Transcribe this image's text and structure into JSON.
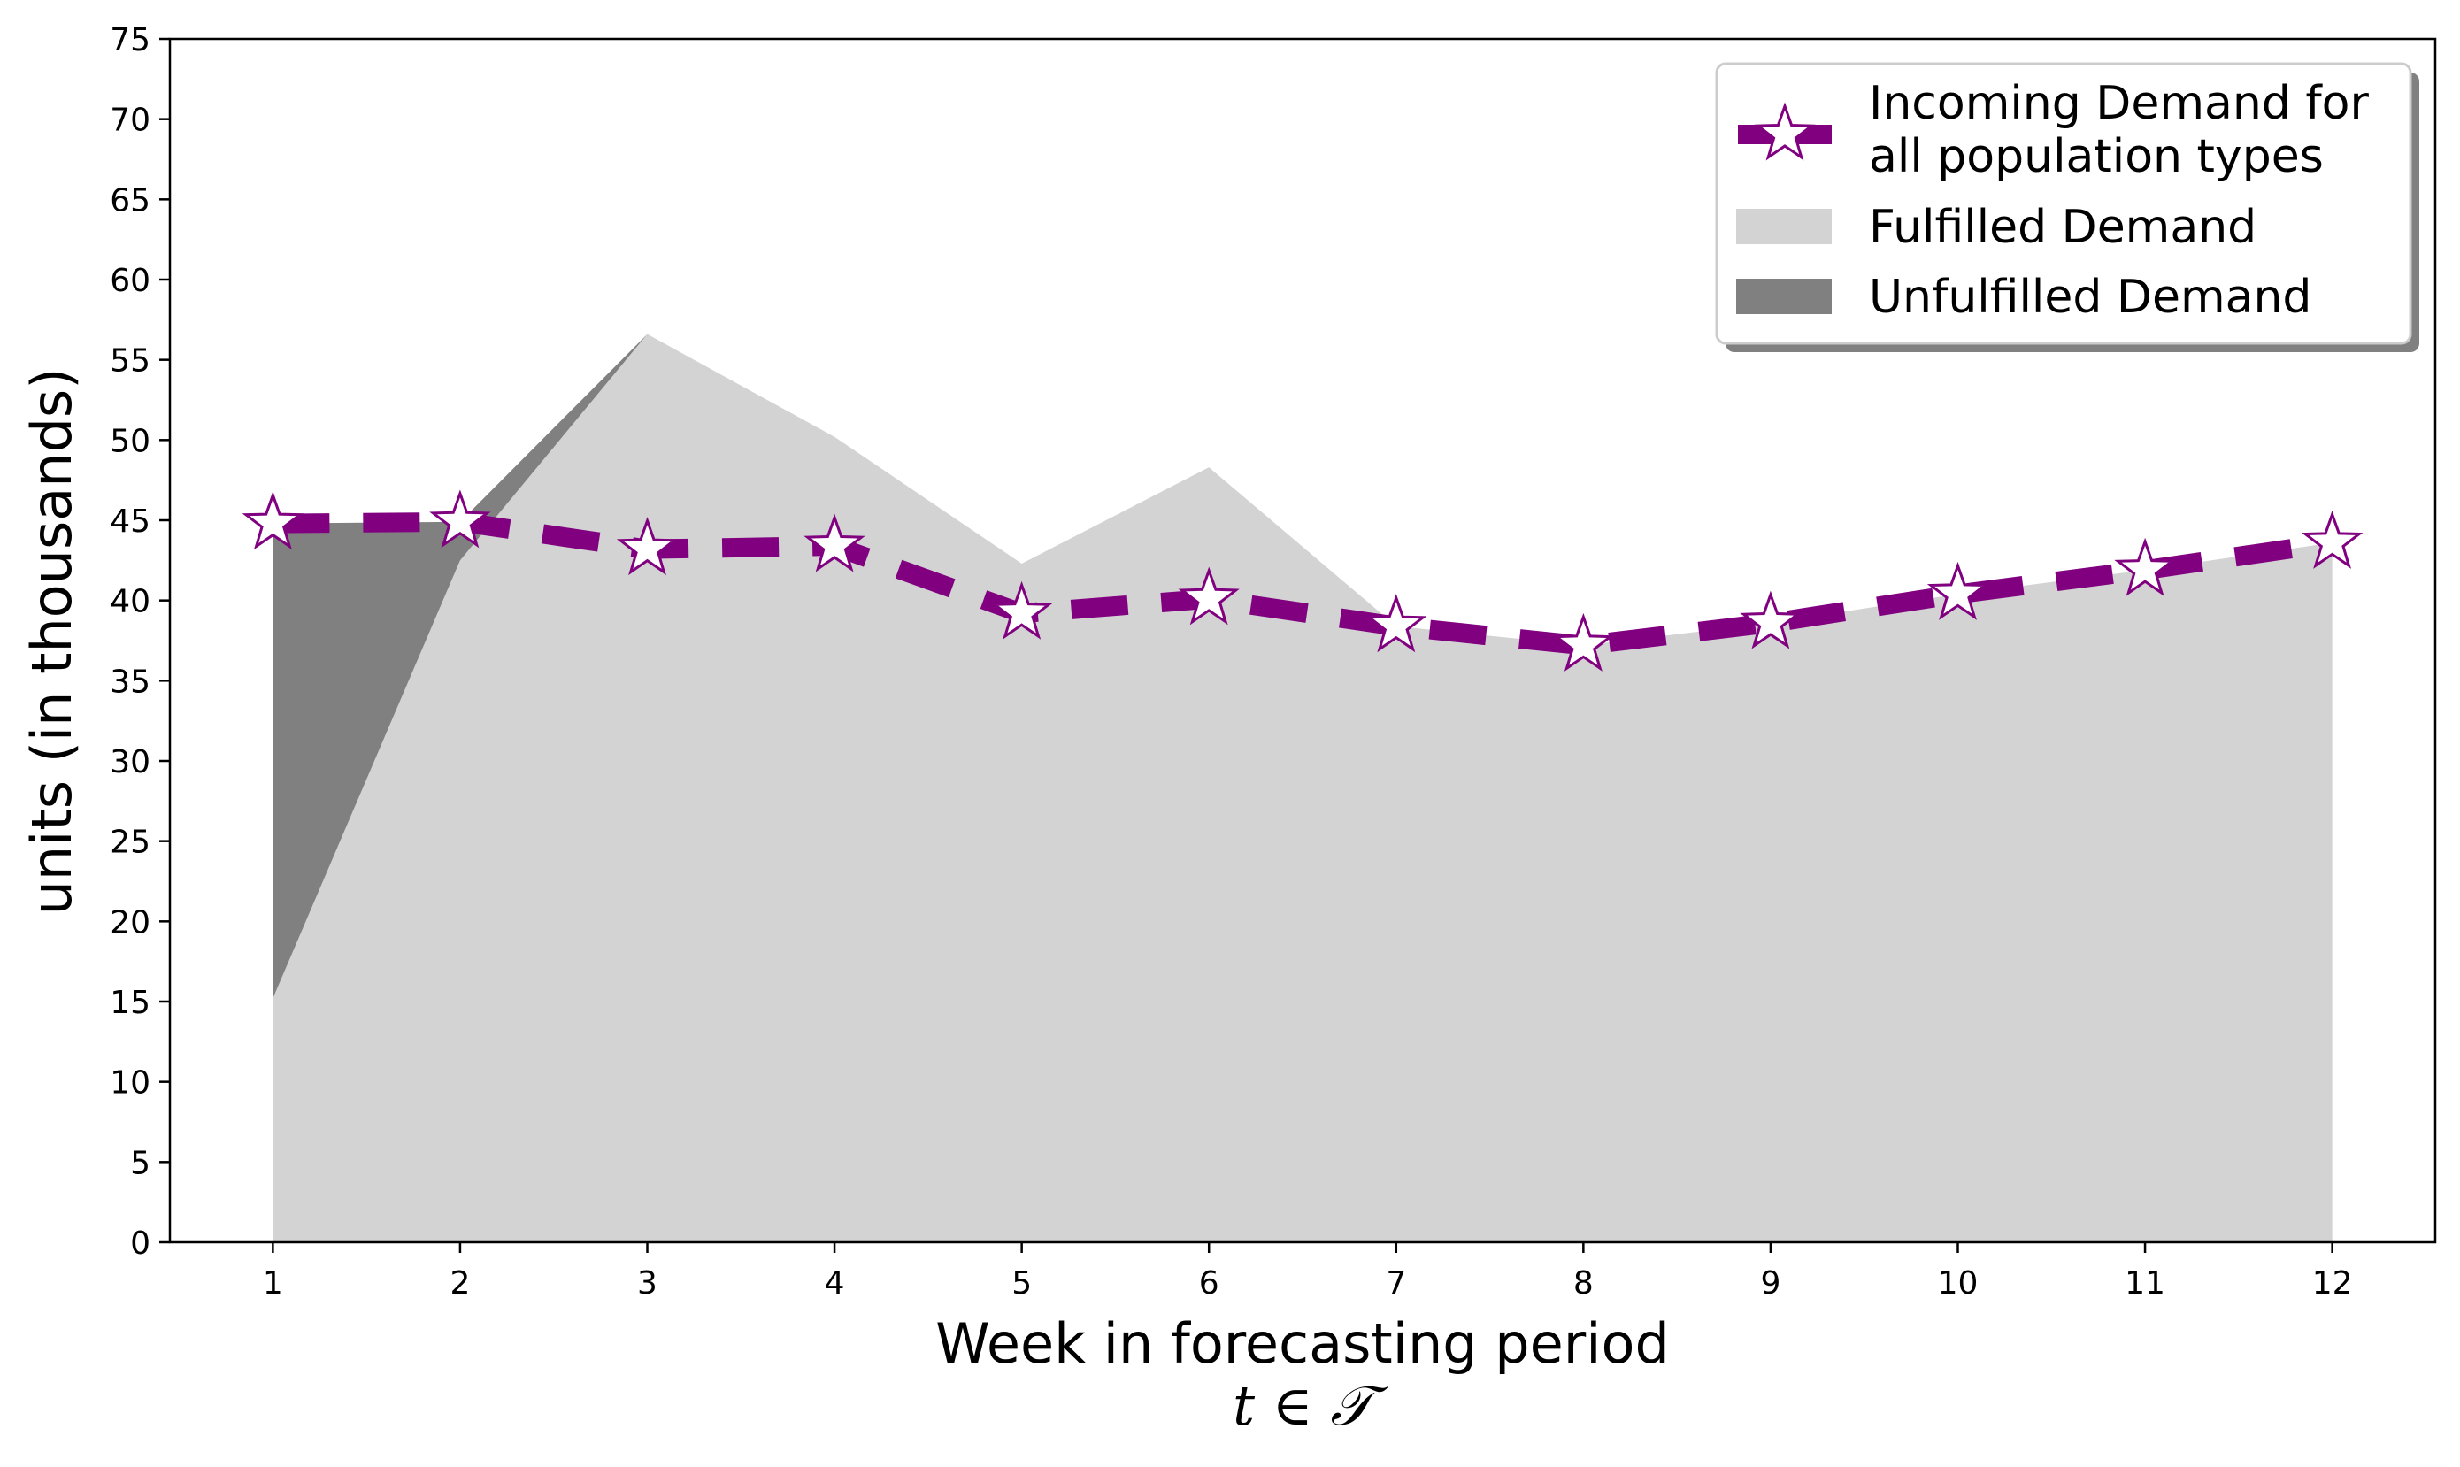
{
  "chart_data": {
    "type": "area",
    "xlabel": "Week in forecasting period",
    "xlabel_math": "t ∈ 𝒯",
    "ylabel": "units (in thousands)",
    "x": [
      1,
      2,
      3,
      4,
      5,
      6,
      7,
      8,
      9,
      10,
      11,
      12
    ],
    "ylim": [
      0,
      75
    ],
    "yticks": [
      0,
      5,
      10,
      15,
      20,
      25,
      30,
      35,
      40,
      45,
      50,
      55,
      60,
      65,
      70,
      75
    ],
    "grid": false,
    "legend_position": "top-right",
    "series": [
      {
        "name": "Incoming Demand for all population types",
        "kind": "line",
        "style": "dashed",
        "marker": "star",
        "color": "#800080",
        "values": [
          44.8,
          44.9,
          43.2,
          43.4,
          39.2,
          40.1,
          38.4,
          37.2,
          38.6,
          40.4,
          41.9,
          43.6
        ]
      },
      {
        "name": "Fulfilled Demand",
        "kind": "area",
        "color": "#d3d3d3",
        "values": [
          15.2,
          42.5,
          56.6,
          50.2,
          42.3,
          48.3,
          38.4,
          37.2,
          38.6,
          40.4,
          41.9,
          43.6
        ]
      },
      {
        "name": "Unfulfilled Demand",
        "kind": "area",
        "color": "#808080",
        "values": [
          29.6,
          2.4,
          0,
          0,
          0,
          0,
          0,
          0,
          0,
          0,
          0,
          0
        ]
      }
    ],
    "legend": {
      "line1": "Incoming Demand for",
      "line2": "all population types",
      "fulfilled": "Fulfilled Demand",
      "unfulfilled": "Unfulfilled Demand"
    }
  }
}
